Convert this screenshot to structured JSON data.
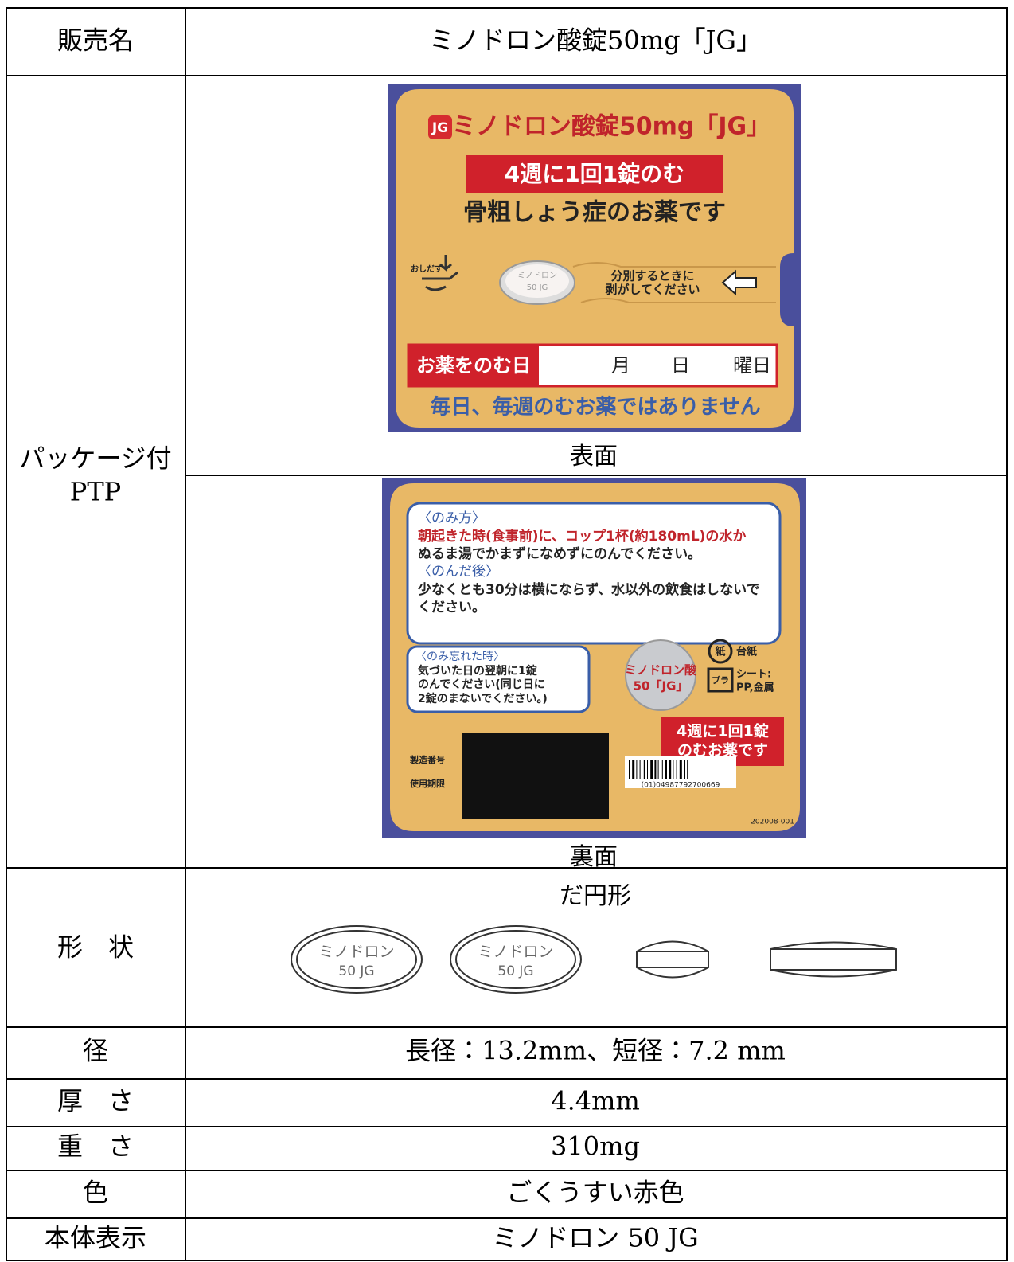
{
  "table": {
    "sales_name": {
      "label": "販売名",
      "value": "ミノドロン酸錠50mg「JG」"
    },
    "package": {
      "label": [
        "パッケージ付",
        "PTP"
      ],
      "front": {
        "logo": "JG",
        "title": "ミノドロン酸錠50mg「JG」",
        "banner": "4週に1回1錠のむ",
        "subtitle": "骨粗しょう症のお薬です",
        "push": "おしだす",
        "tablet": [
          "ミノドロン",
          "50 JG"
        ],
        "separate": [
          "分別するときに",
          "剥がしてください"
        ],
        "date_label": "お薬をのむ日",
        "date_fields": [
          "月",
          "日",
          "曜日"
        ],
        "note": "毎日、毎週のむお薬ではありません",
        "caption": "表面"
      },
      "back": {
        "how_title": "〈のみ方〉",
        "how_lines": [
          "朝起きた時(食事前)に、コップ1杯(約180mL)の水か",
          "ぬるま湯でかまずになめずにのんでください。"
        ],
        "after_title": "〈のんだ後〉",
        "after_lines": [
          "少なくとも30分は横にならず、水以外の飲食はしないで",
          "ください。"
        ],
        "missed_title": "〈のみ忘れた時〉",
        "missed_lines": [
          "気づいた日の翌朝に1錠",
          "のんでください(同じ日に",
          "2錠のまないでください。)"
        ],
        "tablet": [
          "ミノドロン酸",
          "50「JG」"
        ],
        "recycle": [
          {
            "mark": "紙",
            "text": "台紙"
          },
          {
            "mark": "プラ",
            "text": "シート:"
          }
        ],
        "recycle_materials": "PP,金属",
        "badge": [
          "4週に1回1錠",
          "のむお薬です"
        ],
        "lot": "製造番号",
        "expiry": "使用期限",
        "barcode": "(01)04987792700669",
        "code": "202008-001",
        "caption": "裏面"
      }
    },
    "shape": {
      "label": "形　状",
      "value": "だ円形",
      "imprint": [
        "ミノドロン",
        "50 JG"
      ]
    },
    "diameter": {
      "label": "径",
      "value": "長径：13.2mm、短径：7.2 mm"
    },
    "thickness": {
      "label": "厚　さ",
      "value": "4.4mm"
    },
    "weight": {
      "label": "重　さ",
      "value": "310mg"
    },
    "color": {
      "label": "色",
      "value": "ごくうすい赤色"
    },
    "imprint": {
      "label": "本体表示",
      "value": "ミノドロン 50 JG"
    }
  }
}
